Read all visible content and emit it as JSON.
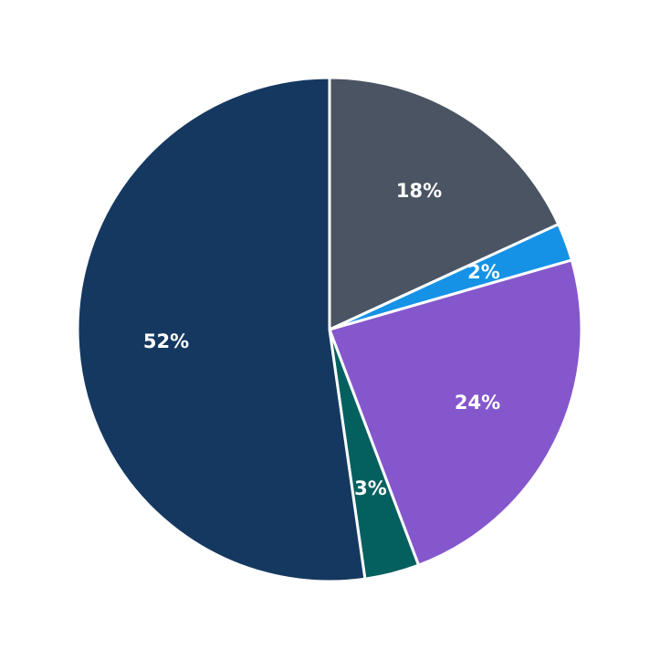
{
  "chart_data": {
    "type": "pie",
    "title": "",
    "start_angle_deg": 90,
    "direction": "clockwise",
    "slices": [
      {
        "label": "18%",
        "value": 18,
        "color": "#4a5463",
        "start": 0,
        "end": 65.3
      },
      {
        "label": "2%",
        "value": 2,
        "color": "#1592e6",
        "start": 65.3,
        "end": 74
      },
      {
        "label": "24%",
        "value": 24,
        "color": "#8557cc",
        "start": 74,
        "end": 159.3
      },
      {
        "label": "3%",
        "value": 3,
        "color": "#03605e",
        "start": 159.3,
        "end": 171.9
      },
      {
        "label": "52%",
        "value": 52,
        "color": "#153860",
        "start": 171.9,
        "end": 360
      }
    ],
    "legend": null
  }
}
